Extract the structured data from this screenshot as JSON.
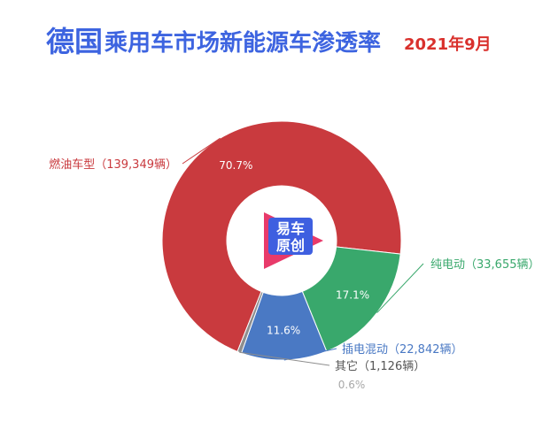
{
  "header": {
    "title_country": "德国",
    "title_rest": "乘用车市场新能源车渗透率",
    "title_date": "2021年9月"
  },
  "logo": {
    "line1": "易车",
    "line2": "原创"
  },
  "chart_data": {
    "type": "pie",
    "variant": "donut",
    "title": "德国乘用车市场新能源车渗透率",
    "subtitle": "2021年9月",
    "slices": [
      {
        "label": "燃油车型（139,349辆）",
        "value": 139349,
        "percent_label": "70.7%",
        "color": "#c93a3e"
      },
      {
        "label": "纯电动（33,655辆）",
        "value": 33655,
        "percent_label": "17.1%",
        "color": "#39a86c"
      },
      {
        "label": "插电混动（22,842辆）",
        "value": 22842,
        "percent_label": "11.6%",
        "color": "#4a79c4"
      },
      {
        "label": "其它（1,126辆）",
        "value": 1126,
        "percent_label": "0.6%",
        "color": "#8e8e8e"
      }
    ]
  }
}
